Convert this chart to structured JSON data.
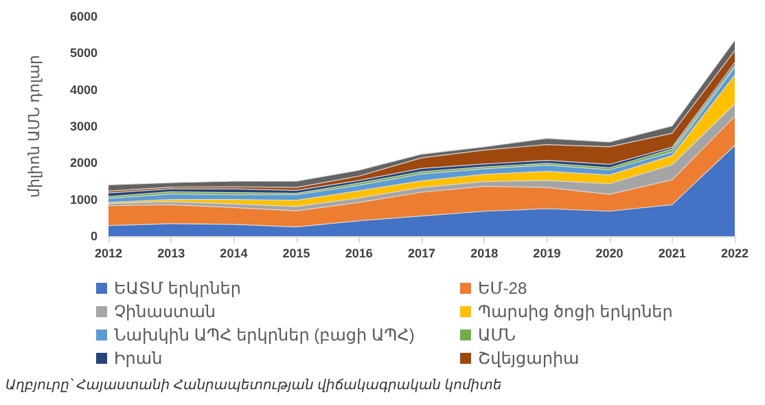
{
  "chart_data": {
    "type": "area",
    "stacked": true,
    "ylabel": "միլիոն ԱՄՆ դոլար",
    "categories": [
      "2012",
      "2013",
      "2014",
      "2015",
      "2016",
      "2017",
      "2018",
      "2019",
      "2020",
      "2021",
      "2022"
    ],
    "ylim": [
      0,
      6000
    ],
    "yticks": [
      0,
      1000,
      2000,
      3000,
      4000,
      5000,
      6000
    ],
    "grid": false,
    "legend": "bottom",
    "series": [
      {
        "name": "ԵԱՏՄ երկրներ",
        "color": "#4472c4",
        "values": [
          290,
          340,
          320,
          250,
          420,
          550,
          680,
          750,
          680,
          860,
          2480
        ]
      },
      {
        "name": "ԵՄ-28",
        "color": "#ed7d31",
        "values": [
          540,
          520,
          460,
          440,
          500,
          650,
          680,
          580,
          460,
          680,
          790
        ]
      },
      {
        "name": "Չինաստան",
        "color": "#a5a5a5",
        "values": [
          60,
          80,
          100,
          120,
          120,
          130,
          130,
          190,
          290,
          410,
          340
        ]
      },
      {
        "name": "Պարսից ծոցի երկրներ",
        "color": "#ffc000",
        "values": [
          30,
          60,
          120,
          170,
          200,
          180,
          200,
          250,
          240,
          250,
          790
        ]
      },
      {
        "name": "Նախկին ԱՊՀ երկրներ (բացի ԱՊՀ)",
        "color": "#5b9bd5",
        "values": [
          110,
          150,
          130,
          150,
          150,
          190,
          150,
          170,
          140,
          100,
          210
        ]
      },
      {
        "name": "ԱՄՆ",
        "color": "#70ad47",
        "values": [
          50,
          60,
          60,
          40,
          60,
          60,
          50,
          50,
          60,
          80,
          60
        ]
      },
      {
        "name": "Իրան",
        "color": "#264478",
        "values": [
          100,
          80,
          100,
          80,
          70,
          90,
          80,
          80,
          90,
          50,
          70
        ]
      },
      {
        "name": "Շվեյցարիա",
        "color": "#9e480e",
        "values": [
          50,
          50,
          60,
          80,
          120,
          290,
          380,
          430,
          480,
          380,
          330
        ]
      },
      {
        "color": "#636363",
        "values": [
          170,
          120,
          150,
          170,
          160,
          100,
          90,
          170,
          130,
          200,
          280
        ]
      }
    ],
    "annotations": [
      "Աղբյուրը՝ Հայաստանի Հանրապետության վիճակագրական կոմիտե"
    ]
  }
}
